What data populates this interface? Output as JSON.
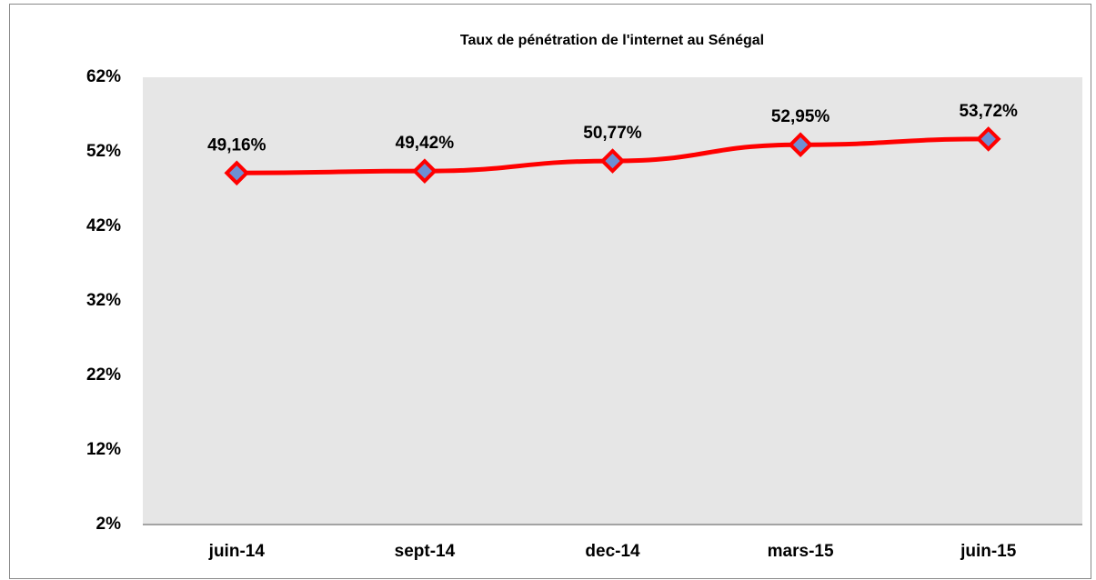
{
  "chart_data": {
    "type": "line",
    "title": "Taux de pénétration de l'internet au Sénégal",
    "categories": [
      "juin-14",
      "sept-14",
      "dec-14",
      "mars-15",
      "juin-15"
    ],
    "series": [
      {
        "name": "Taux de pénétration",
        "color": "#ff0000",
        "marker_color": "#6e8fd3",
        "values": [
          49.16,
          49.42,
          50.77,
          52.95,
          53.72
        ],
        "value_labels": [
          "49,16%",
          "49,42%",
          "50,77%",
          "52,95%",
          "53,72%"
        ]
      }
    ],
    "ylim": [
      2,
      62
    ],
    "yticks": [
      {
        "value": 2,
        "label": "2%"
      },
      {
        "value": 12,
        "label": "12%"
      },
      {
        "value": 22,
        "label": "22%"
      },
      {
        "value": 32,
        "label": "32%"
      },
      {
        "value": 42,
        "label": "42%"
      },
      {
        "value": 52,
        "label": "52%"
      },
      {
        "value": 62,
        "label": "62%"
      }
    ],
    "plot_background": "#e6e6e6"
  }
}
